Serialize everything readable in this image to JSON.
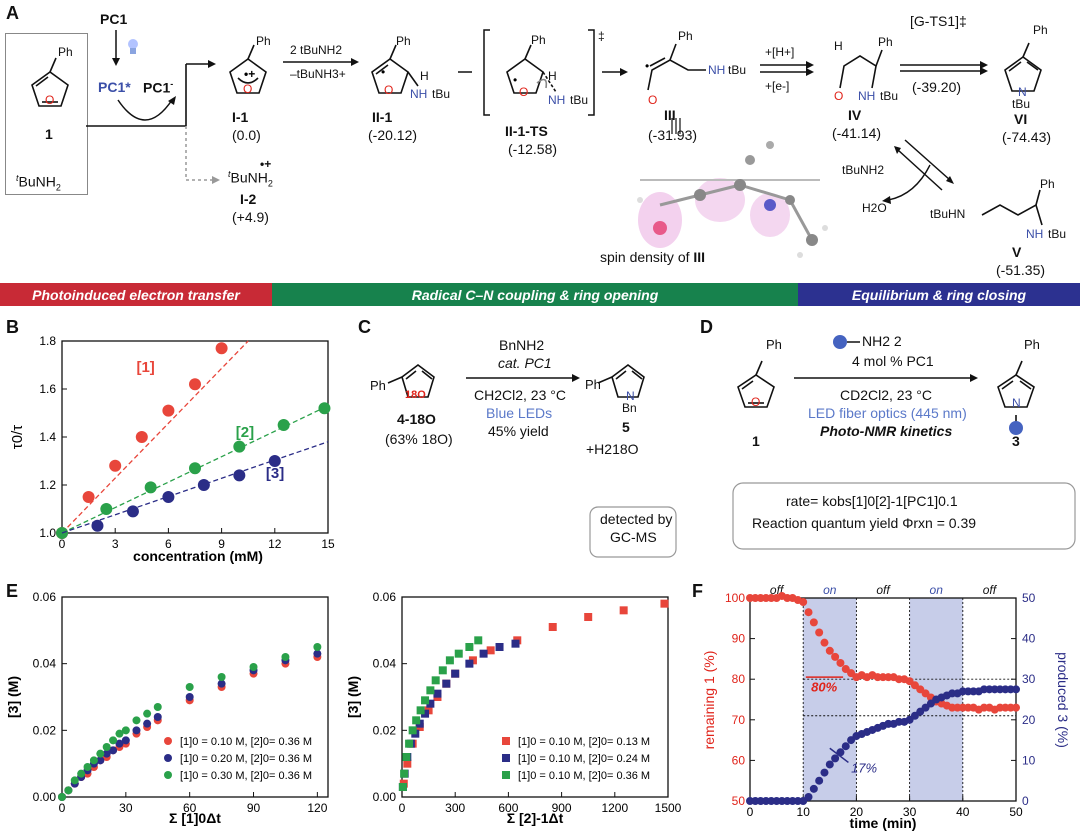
{
  "panelA": {
    "letter": "A",
    "start": {
      "pc1": "PC1",
      "cmpd_num": "1",
      "ph": "Ph",
      "o": "O",
      "amine_pre": "t",
      "amine_main": "BuNH",
      "amine_sub": "2",
      "pc1star": "PC1*",
      "pc1minus": "PC1",
      "pc1minus_sup": "-"
    },
    "I1": {
      "label": "I-1",
      "energy": "(0.0)",
      "ph": "Ph",
      "o": "O"
    },
    "I2": {
      "label": "I-2",
      "energy": "(+4.9)",
      "formula_pre": "t",
      "formula": "BuNH",
      "sub": "2",
      "charge": "•+"
    },
    "arrow_top": "2 tBuNH2",
    "arrow_bottom": "–tBuNH3+",
    "II1": {
      "label": "II-1",
      "energy": "(-20.12)",
      "ph": "Ph",
      "h": "H",
      "nh": "NH",
      "tbu": "tBu",
      "o": "O"
    },
    "II1TS": {
      "label": "II-1-TS",
      "energy": "(-12.58)",
      "dagger": "‡",
      "ph": "Ph",
      "h": "H",
      "nh": "NH",
      "tbu": "tBu",
      "o": "O"
    },
    "III": {
      "label": "III",
      "energy": "(-31.93)",
      "ph": "Ph",
      "nh": "NH",
      "tbu": "tBu",
      "o": "O",
      "spin_caption": "spin density of ",
      "spin_label": "III"
    },
    "arrow_III_IV_top": "+[H+]",
    "arrow_III_IV_bottom": "+[e-]",
    "IV": {
      "label": "IV",
      "energy": "(-41.14)",
      "ph": "Ph",
      "h": "H",
      "nh": "NH",
      "tbu": "tBu",
      "o": "O"
    },
    "GTS1": {
      "label": "[G-TS1]‡",
      "energy": "(-39.20)"
    },
    "VI": {
      "label": "VI",
      "energy": "(-74.43)",
      "ph": "Ph",
      "n": "N",
      "tbu": "tBu"
    },
    "V": {
      "label": "V",
      "energy": "(-51.35)",
      "ph": "Ph",
      "tbuhn": "tBuHN",
      "nh": "NH",
      "tbu": "tBu"
    },
    "equil_amine": "tBuNH2",
    "equil_water": "H2O",
    "banners": [
      "Photoinduced electron transfer",
      "Radical C–N coupling & ring opening",
      "Equilibrium & ring closing"
    ]
  },
  "panelB": {
    "letter": "B",
    "ylabel": "τ0/τ",
    "xlabel": "concentration (mM)"
  },
  "panelC": {
    "letter": "C",
    "reagent": "BnNH2",
    "catalyst": "cat. PC1",
    "cond1": "CH2Cl2, 23 °C",
    "cond2": "Blue LEDs",
    "cond3": "45% yield",
    "sm_label": "4-18O",
    "sm_note": "(63% 18O)",
    "ph": "Ph",
    "o18": "18O",
    "product_label": "5",
    "product_n": "N",
    "product_bn": "Bn",
    "product_ph": "Ph",
    "byproduct": "+H218O",
    "detect1": "detected by",
    "detect2": "GC-MS"
  },
  "panelD": {
    "letter": "D",
    "reagent": "NH2 2",
    "loading": "4 mol % PC1",
    "cond1": "CD2Cl2, 23 °C",
    "cond2": "LED fiber optics (445 nm)",
    "cond3": "Photo-NMR kinetics",
    "sm_label": "1",
    "product_label": "3",
    "ph": "Ph",
    "o": "O",
    "n": "N",
    "rate": "rate= kobs[1]0[2]-1[PC1]0.1",
    "quantum": "Reaction quantum yield Φrxn = 0.39"
  },
  "panelE": {
    "letter": "E"
  },
  "panelF": {
    "letter": "F"
  },
  "chart_data": [
    {
      "type": "scatter",
      "id": "B",
      "ylabel": "τ0/τ",
      "xlabel": "concentration (mM)",
      "xlim": [
        0,
        15
      ],
      "ylim": [
        1.0,
        1.8
      ],
      "xticks": [
        0,
        3,
        6,
        9,
        12,
        15
      ],
      "yticks": [
        1.0,
        1.2,
        1.4,
        1.6,
        1.8
      ],
      "series": [
        {
          "name": "[1]",
          "color": "#e8463b",
          "x": [
            0,
            1.5,
            3,
            4.5,
            6,
            7.5,
            9
          ],
          "y": [
            1.0,
            1.15,
            1.28,
            1.4,
            1.51,
            1.62,
            1.77
          ],
          "fit": [
            [
              0,
              1.0
            ],
            [
              10.5,
              1.9
            ]
          ]
        },
        {
          "name": "[2]",
          "color": "#2aa14a",
          "x": [
            0,
            2.5,
            5,
            7.5,
            10,
            12.5,
            14.8
          ],
          "y": [
            1.0,
            1.1,
            1.19,
            1.27,
            1.36,
            1.45,
            1.52
          ],
          "fit": [
            [
              0,
              1.0
            ],
            [
              15,
              1.53
            ]
          ]
        },
        {
          "name": "[3]",
          "color": "#2b2d87",
          "x": [
            2,
            4,
            6,
            8,
            10,
            12
          ],
          "y": [
            1.03,
            1.09,
            1.15,
            1.2,
            1.24,
            1.3
          ],
          "fit": [
            [
              0,
              1.0
            ],
            [
              15,
              1.38
            ]
          ]
        }
      ]
    },
    {
      "type": "scatter",
      "id": "E-left",
      "ylabel": "[3] (M)",
      "xlabel": "Σ [1]0Δt",
      "xlim": [
        0,
        125
      ],
      "ylim": [
        0,
        0.06
      ],
      "xticks": [
        0,
        30,
        60,
        90,
        120
      ],
      "yticks": [
        0,
        0.02,
        0.04,
        0.06
      ],
      "series": [
        {
          "name": "[1]0 = 0.10 M, [2]0= 0.36 M",
          "color": "#e8463b",
          "x": [
            0,
            3,
            6,
            9,
            12,
            15,
            18,
            21,
            24,
            27,
            30,
            35,
            40,
            45,
            60,
            75,
            90,
            105,
            120
          ],
          "y": [
            0,
            0.002,
            0.004,
            0.006,
            0.007,
            0.009,
            0.011,
            0.012,
            0.014,
            0.015,
            0.016,
            0.019,
            0.021,
            0.023,
            0.029,
            0.033,
            0.037,
            0.04,
            0.042
          ]
        },
        {
          "name": "[1]0 = 0.20 M, [2]0= 0.36 M",
          "color": "#2b2d87",
          "x": [
            0,
            3,
            6,
            9,
            12,
            15,
            18,
            21,
            24,
            27,
            30,
            35,
            40,
            45,
            60,
            75,
            90,
            105,
            120
          ],
          "y": [
            0,
            0.002,
            0.004,
            0.006,
            0.008,
            0.01,
            0.011,
            0.013,
            0.014,
            0.016,
            0.017,
            0.02,
            0.022,
            0.024,
            0.03,
            0.034,
            0.038,
            0.041,
            0.043
          ]
        },
        {
          "name": "[1]0 = 0.30 M, [2]0= 0.36 M",
          "color": "#2aa14a",
          "x": [
            0,
            3,
            6,
            9,
            12,
            15,
            18,
            21,
            24,
            27,
            30,
            35,
            40,
            45,
            60,
            75,
            90,
            105,
            120
          ],
          "y": [
            0,
            0.002,
            0.005,
            0.007,
            0.009,
            0.011,
            0.013,
            0.015,
            0.017,
            0.019,
            0.02,
            0.023,
            0.025,
            0.027,
            0.033,
            0.036,
            0.039,
            0.042,
            0.045
          ]
        }
      ]
    },
    {
      "type": "scatter",
      "id": "E-right",
      "ylabel": "[3] (M)",
      "xlabel": "Σ [2]-1Δt",
      "xlim": [
        0,
        1500
      ],
      "ylim": [
        0,
        0.06
      ],
      "xticks": [
        0,
        300,
        600,
        900,
        1200,
        1500
      ],
      "yticks": [
        0,
        0.02,
        0.04,
        0.06
      ],
      "series": [
        {
          "name": "[1]0 = 0.10 M, [2]0= 0.13 M",
          "color": "#e8463b",
          "x": [
            10,
            30,
            60,
            100,
            150,
            200,
            250,
            300,
            400,
            500,
            650,
            850,
            1050,
            1250,
            1480
          ],
          "y": [
            0.004,
            0.01,
            0.016,
            0.021,
            0.026,
            0.03,
            0.034,
            0.037,
            0.041,
            0.044,
            0.047,
            0.051,
            0.054,
            0.056,
            0.058
          ]
        },
        {
          "name": "[1]0 = 0.10 M, [2]0= 0.24 M",
          "color": "#2b2d87",
          "x": [
            5,
            15,
            30,
            50,
            75,
            100,
            130,
            160,
            200,
            250,
            300,
            380,
            460,
            550,
            640
          ],
          "y": [
            0.003,
            0.007,
            0.012,
            0.016,
            0.019,
            0.022,
            0.025,
            0.028,
            0.031,
            0.034,
            0.037,
            0.04,
            0.043,
            0.045,
            0.046
          ]
        },
        {
          "name": "[1]0 = 0.10 M, [2]0= 0.36 M",
          "color": "#2aa14a",
          "x": [
            5,
            12,
            25,
            40,
            60,
            80,
            105,
            130,
            160,
            190,
            230,
            270,
            320,
            380,
            430
          ],
          "y": [
            0.003,
            0.007,
            0.012,
            0.016,
            0.02,
            0.023,
            0.026,
            0.029,
            0.032,
            0.035,
            0.038,
            0.041,
            0.043,
            0.045,
            0.047
          ]
        }
      ]
    },
    {
      "type": "scatter",
      "id": "F",
      "ylabel": "remaining 1 (%)",
      "ylabel2": "produced 3 (%)",
      "xlabel": "time (min)",
      "xlim": [
        0,
        50
      ],
      "ylim": [
        50,
        100
      ],
      "ylim2": [
        0,
        50
      ],
      "xticks": [
        0,
        10,
        20,
        30,
        40,
        50
      ],
      "yticks": [
        50,
        60,
        70,
        80,
        90,
        100
      ],
      "yticks2": [
        0,
        10,
        20,
        30,
        40,
        50
      ],
      "annotations": [
        "80%",
        "17%"
      ],
      "phases": [
        {
          "label": "off",
          "from": 0,
          "to": 10
        },
        {
          "label": "on",
          "from": 10,
          "to": 20
        },
        {
          "label": "off",
          "from": 20,
          "to": 30
        },
        {
          "label": "on",
          "from": 30,
          "to": 40
        },
        {
          "label": "off",
          "from": 40,
          "to": 50
        }
      ],
      "series": [
        {
          "name": "remaining 1",
          "color": "#e8463b",
          "axis": "left",
          "x": [
            0,
            1,
            2,
            3,
            4,
            5,
            6,
            7,
            8,
            9,
            10,
            11,
            12,
            13,
            14,
            15,
            16,
            17,
            18,
            19,
            20,
            21,
            22,
            23,
            24,
            25,
            26,
            27,
            28,
            29,
            30,
            31,
            32,
            33,
            34,
            35,
            36,
            37,
            38,
            39,
            40,
            41,
            42,
            43,
            44,
            45,
            46,
            47,
            48,
            49,
            50
          ],
          "y": [
            100,
            100,
            100,
            100,
            100,
            100,
            100.5,
            100,
            100,
            99.5,
            99,
            96.5,
            94,
            91.5,
            89,
            87,
            85.5,
            84,
            82.5,
            81.5,
            80.5,
            81,
            80.5,
            81,
            80.5,
            80.5,
            80.5,
            80.5,
            80,
            80,
            79.5,
            78.5,
            77.5,
            76.5,
            75.5,
            74.5,
            74,
            73.5,
            73,
            73,
            73,
            73,
            73,
            72.5,
            73,
            73,
            72.5,
            73,
            73,
            73,
            73
          ]
        },
        {
          "name": "produced 3",
          "color": "#2b2d87",
          "axis": "right",
          "x": [
            0,
            1,
            2,
            3,
            4,
            5,
            6,
            7,
            8,
            9,
            10,
            11,
            12,
            13,
            14,
            15,
            16,
            17,
            18,
            19,
            20,
            21,
            22,
            23,
            24,
            25,
            26,
            27,
            28,
            29,
            30,
            31,
            32,
            33,
            34,
            35,
            36,
            37,
            38,
            39,
            40,
            41,
            42,
            43,
            44,
            45,
            46,
            47,
            48,
            49,
            50
          ],
          "y": [
            0,
            0,
            0,
            0,
            0,
            0,
            0,
            0,
            0,
            0,
            0,
            1,
            3,
            5,
            7,
            9,
            10.5,
            12,
            13.5,
            15,
            16,
            16.5,
            17,
            17.5,
            18,
            18.5,
            19,
            19,
            19.5,
            19.5,
            20,
            21,
            22,
            23,
            24,
            25,
            25.5,
            26,
            26.5,
            26.5,
            27,
            27,
            27,
            27,
            27.5,
            27.5,
            27.5,
            27.5,
            27.5,
            27.5,
            27.5
          ]
        }
      ]
    }
  ]
}
